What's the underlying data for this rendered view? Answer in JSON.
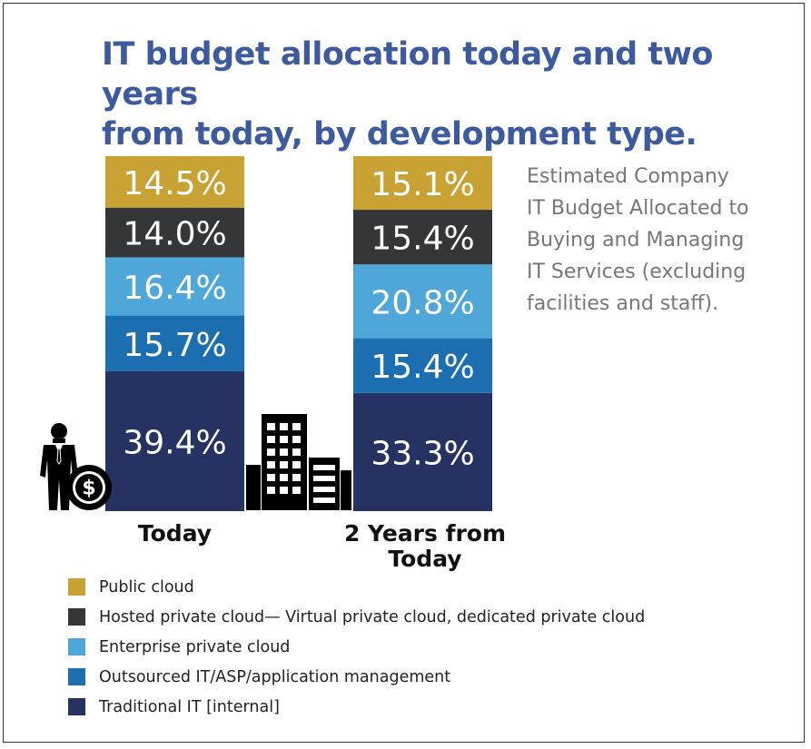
{
  "title_lines": [
    "IT budget allocation today and two years",
    "from today, by development type."
  ],
  "note": "Estimated Company\nIT Budget Allocated to\nBuying and Managing\nIT Services (excluding\nfacilities and staff).",
  "icons": [
    "businessman-with-dollar-coin-icon",
    "office-buildings-icon"
  ],
  "chart_data": {
    "type": "bar",
    "stacked": true,
    "categories": [
      "Today",
      "2 Years from Today"
    ],
    "series": [
      {
        "name": "Traditional IT [internal]",
        "color": "#263262",
        "values": [
          39.4,
          33.3
        ],
        "labels": [
          "39.4%",
          "33.3%"
        ]
      },
      {
        "name": "Outsourced IT/ASP/application management",
        "color": "#1b6fb0",
        "values": [
          15.7,
          15.4
        ],
        "labels": [
          "15.7%",
          "15.4%"
        ]
      },
      {
        "name": "Enterprise private cloud",
        "color": "#4ea7d8",
        "values": [
          16.4,
          20.8
        ],
        "labels": [
          "16.4%",
          "20.8%"
        ]
      },
      {
        "name": "Hosted private cloud— Virtual private cloud, dedicated private cloud",
        "color": "#353638",
        "values": [
          14.0,
          15.4
        ],
        "labels": [
          "14.0%",
          "15.4%"
        ]
      },
      {
        "name": "Public cloud",
        "color": "#c9a234",
        "values": [
          14.5,
          15.1
        ],
        "labels": [
          "14.5%",
          "15.1%"
        ]
      }
    ],
    "legend_order": [
      "Public cloud",
      "Hosted private cloud— Virtual private cloud, dedicated private cloud",
      "Enterprise private cloud",
      "Outsourced IT/ASP/application management",
      "Traditional IT [internal]"
    ],
    "legend_position": "bottom-left",
    "ylim": [
      0,
      100
    ],
    "grid": false
  }
}
